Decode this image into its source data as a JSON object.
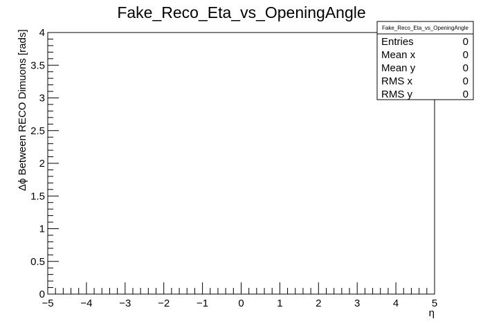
{
  "chart_data": {
    "type": "scatter",
    "title": "Fake_Reco_Eta_vs_OpeningAngle",
    "xlabel": "η",
    "ylabel": "Δϕ Between RECO Dimuons [rads]",
    "xlim": [
      -5,
      5
    ],
    "ylim": [
      0,
      4
    ],
    "x_ticks": [
      "−5",
      "−4",
      "−3",
      "−2",
      "−1",
      "0",
      "1",
      "2",
      "3",
      "4",
      "5"
    ],
    "y_ticks": [
      "0",
      "0.5",
      "1",
      "1.5",
      "2",
      "2.5",
      "3",
      "3.5",
      "4"
    ],
    "grid": false,
    "x": [],
    "y": [],
    "stats": {
      "name": "Fake_Reco_Eta_vs_OpeningAngle",
      "placement": "top-right",
      "rows": [
        {
          "label": "Entries",
          "value": "0"
        },
        {
          "label": "Mean x",
          "value": "0"
        },
        {
          "label": "Mean y",
          "value": "0"
        },
        {
          "label": "RMS x",
          "value": "0"
        },
        {
          "label": "RMS y",
          "value": "0"
        }
      ]
    }
  }
}
